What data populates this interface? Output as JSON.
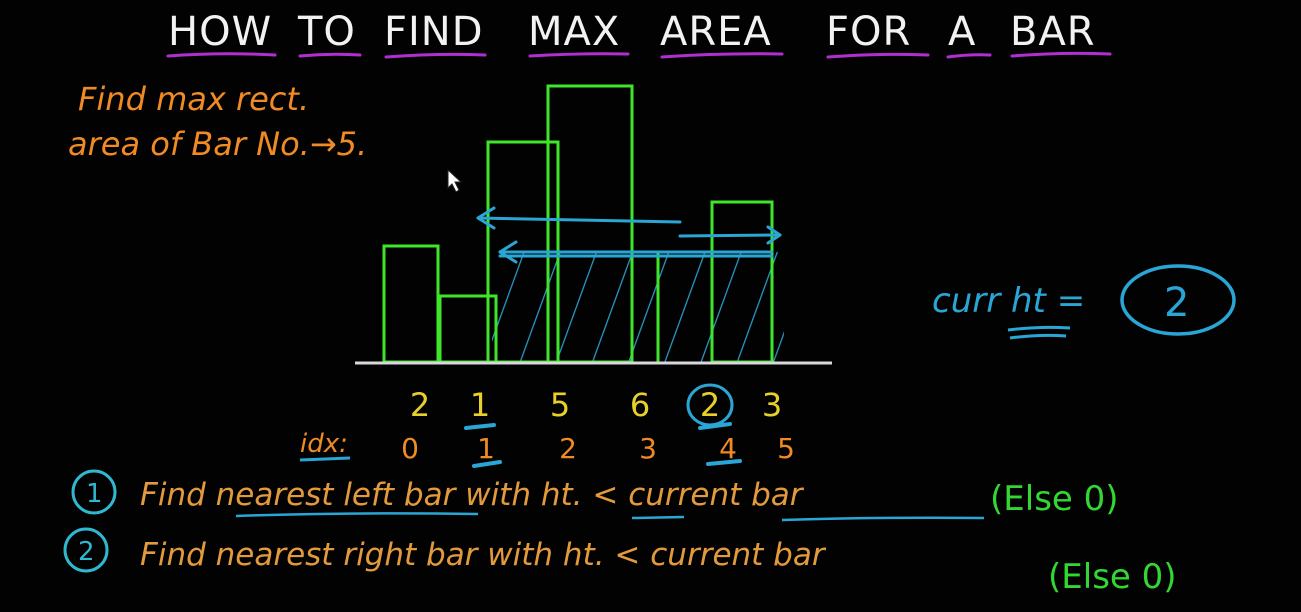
{
  "colors": {
    "background": "#020202",
    "title": "#f2f2f2",
    "underline": "#b12fd0",
    "note": "#f08a24",
    "bar": "#3ee52a",
    "baseline": "#d8d8d8",
    "hatch": "#2aa6d6",
    "heights": "#e8d02a",
    "index": "#f08a24",
    "steps": "#e39a3c",
    "else": "#33d633",
    "badge": "#2fb8cf"
  },
  "title": {
    "words": [
      "HOW",
      "TO",
      "FIND",
      "MAX",
      "AREA",
      "FOR",
      "A",
      "BAR"
    ]
  },
  "note": {
    "line1": "Find max rect.",
    "line2": "area of Bar No.→5."
  },
  "curr_height": {
    "label": "curr ht =",
    "value": "2"
  },
  "histogram": {
    "heights": [
      2,
      1,
      5,
      6,
      2,
      3
    ],
    "highlighted_index": 4,
    "idx_label": "idx:",
    "indices": [
      0,
      1,
      2,
      3,
      4,
      5
    ]
  },
  "steps": [
    {
      "num": "1",
      "prefix": "Find ",
      "emph": "nearest left bar",
      "mid": " with ",
      "ht": "ht.",
      "op": " < ",
      "cur": "current bar",
      "tail": "(Else 0)"
    },
    {
      "num": "2",
      "prefix": "Find ",
      "emph": "nearest right bar",
      "mid": " with ",
      "ht": "ht.",
      "op": " < ",
      "cur": "current bar",
      "tail": "(Else 0)"
    }
  ]
}
